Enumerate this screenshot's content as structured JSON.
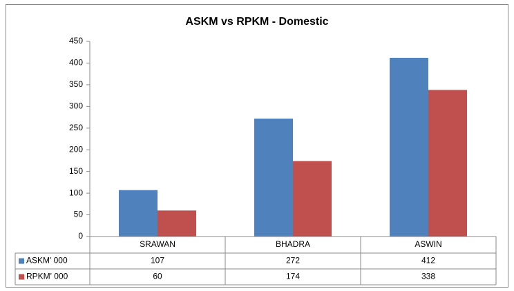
{
  "chart_data": {
    "type": "bar",
    "title": "ASKM vs RPKM - Domestic",
    "categories": [
      "SRAWAN",
      "BHADRA",
      "ASWIN"
    ],
    "series": [
      {
        "name": "ASKM' 000",
        "color": "#4f81bd",
        "values": [
          107,
          272,
          412
        ]
      },
      {
        "name": "RPKM' 000",
        "color": "#c0504d",
        "values": [
          60,
          174,
          338
        ]
      }
    ],
    "ylim": [
      0,
      450
    ],
    "yticks": [
      0,
      50,
      100,
      150,
      200,
      250,
      300,
      350,
      400,
      450
    ],
    "grid": false
  }
}
